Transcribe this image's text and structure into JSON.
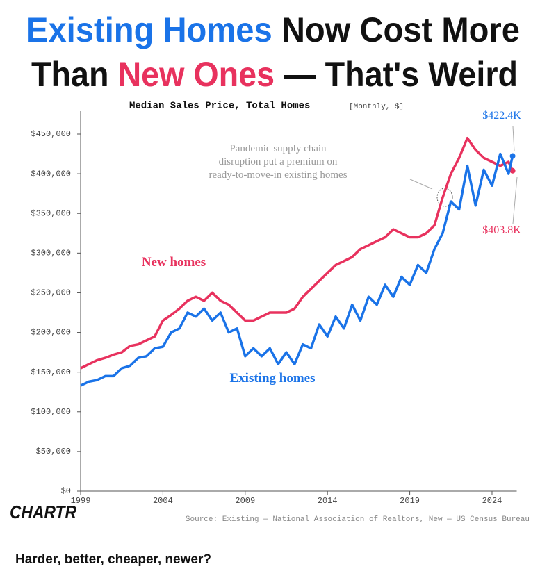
{
  "chart_data": {
    "type": "line",
    "title": [
      {
        "text": "Existing Homes",
        "color": "#1a73e8"
      },
      {
        "text": " Now Cost More",
        "color": "#111111"
      },
      {
        "text": "Than ",
        "color": "#111111"
      },
      {
        "text": "New Ones",
        "color": "#e8325e"
      },
      {
        "text": " — That's Weird",
        "color": "#111111"
      }
    ],
    "subtitle": "Median Sales Price, Total Homes",
    "subtitle_note": "[Monthly, $]",
    "annotation": [
      "Pandemic supply chain",
      "disruption put a premium on",
      "ready-to-move-in existing homes"
    ],
    "source": "Source: Existing — National Association of Realtors, New — US Census Bureau",
    "logo": "CHARTR",
    "caption": "Harder, better, cheaper, newer?",
    "x": [
      1999,
      1999.5,
      2000,
      2000.5,
      2001,
      2001.5,
      2002,
      2002.5,
      2003,
      2003.5,
      2004,
      2004.5,
      2005,
      2005.5,
      2006,
      2006.5,
      2007,
      2007.5,
      2008,
      2008.5,
      2009,
      2009.5,
      2010,
      2010.5,
      2011,
      2011.5,
      2012,
      2012.5,
      2013,
      2013.5,
      2014,
      2014.5,
      2015,
      2015.5,
      2016,
      2016.5,
      2017,
      2017.5,
      2018,
      2018.5,
      2019,
      2019.5,
      2020,
      2020.5,
      2021,
      2021.5,
      2022,
      2022.5,
      2023,
      2023.5,
      2024,
      2024.5,
      2025,
      2025.25
    ],
    "xlim": [
      1999,
      2025.5
    ],
    "xticks": [
      1999,
      2004,
      2009,
      2014,
      2019,
      2024
    ],
    "ylim": [
      0,
      450000
    ],
    "yticks": [
      {
        "value": 0,
        "label": "$0"
      },
      {
        "value": 50000,
        "label": "$50,000"
      },
      {
        "value": 100000,
        "label": "$100,000"
      },
      {
        "value": 150000,
        "label": "$150,000"
      },
      {
        "value": 200000,
        "label": "$200,000"
      },
      {
        "value": 250000,
        "label": "$250,000"
      },
      {
        "value": 300000,
        "label": "$300,000"
      },
      {
        "value": 350000,
        "label": "$350,000"
      },
      {
        "value": 400000,
        "label": "$400,000"
      },
      {
        "value": 450000,
        "label": "$450,000"
      }
    ],
    "series": [
      {
        "name": "New homes",
        "color": "#e8325e",
        "values": [
          155000,
          160000,
          165000,
          168000,
          172000,
          175000,
          183000,
          185000,
          190000,
          195000,
          215000,
          222000,
          230000,
          240000,
          245000,
          240000,
          250000,
          240000,
          235000,
          225000,
          215000,
          215000,
          220000,
          225000,
          225000,
          225000,
          230000,
          245000,
          255000,
          265000,
          275000,
          285000,
          290000,
          295000,
          305000,
          310000,
          315000,
          320000,
          330000,
          325000,
          320000,
          320000,
          325000,
          335000,
          370000,
          400000,
          420000,
          445000,
          430000,
          420000,
          415000,
          410000,
          415000,
          403800
        ],
        "value_labels": [
          null,
          null,
          null,
          null,
          null,
          null,
          null,
          null,
          null,
          null,
          null,
          null,
          null,
          null,
          null,
          null,
          null,
          null,
          null,
          null,
          null,
          null,
          null,
          null,
          null,
          null,
          null,
          null,
          null,
          null,
          null,
          null,
          null,
          null,
          null,
          null,
          null,
          null,
          null,
          null,
          null,
          null,
          null,
          null,
          null,
          null,
          null,
          null,
          null,
          null,
          null,
          null,
          null,
          "$403.8K"
        ]
      },
      {
        "name": "Existing homes",
        "color": "#1a73e8",
        "values": [
          133000,
          138000,
          140000,
          145000,
          145000,
          155000,
          158000,
          168000,
          170000,
          180000,
          182000,
          200000,
          205000,
          225000,
          220000,
          230000,
          215000,
          225000,
          200000,
          205000,
          170000,
          180000,
          170000,
          180000,
          160000,
          175000,
          160000,
          185000,
          180000,
          210000,
          195000,
          220000,
          205000,
          235000,
          215000,
          245000,
          235000,
          260000,
          245000,
          270000,
          260000,
          285000,
          275000,
          305000,
          325000,
          365000,
          355000,
          410000,
          360000,
          405000,
          385000,
          425000,
          400000,
          422400
        ],
        "value_labels": [
          null,
          null,
          null,
          null,
          null,
          null,
          null,
          null,
          null,
          null,
          null,
          null,
          null,
          null,
          null,
          null,
          null,
          null,
          null,
          null,
          null,
          null,
          null,
          null,
          null,
          null,
          null,
          null,
          null,
          null,
          null,
          null,
          null,
          null,
          null,
          null,
          null,
          null,
          null,
          null,
          null,
          null,
          null,
          null,
          null,
          null,
          null,
          null,
          null,
          null,
          null,
          null,
          null,
          "$422.4K"
        ]
      }
    ]
  }
}
